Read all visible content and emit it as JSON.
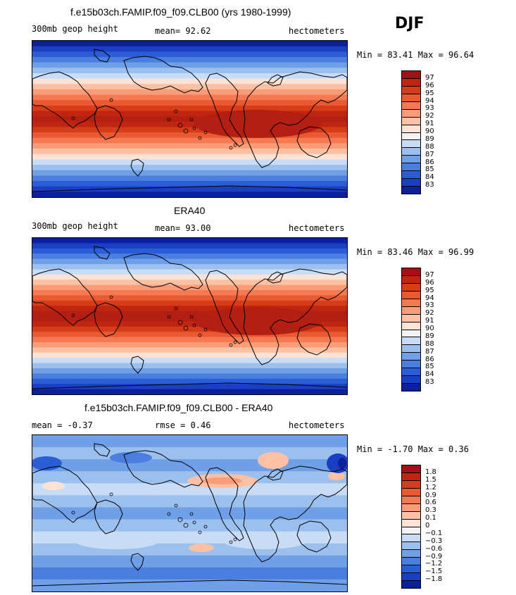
{
  "season": "DJF",
  "panels": [
    {
      "title": "f.e15b03ch.FAMIP.f09_f09.CLB00 (yrs 1980-1999)",
      "left_label": "300mb geop height",
      "center_label": "mean=  92.62",
      "units": "hectometers",
      "minmax": "Min =  83.41 Max =  96.64",
      "colorbar_labels": [
        "97",
        "96",
        "95",
        "94",
        "93",
        "92",
        "91",
        "90",
        "89",
        "88",
        "87",
        "86",
        "85",
        "84",
        "83"
      ],
      "colorbar_colors": [
        "#a50f15",
        "#c0250f",
        "#d73c18",
        "#ea5a32",
        "#f57a52",
        "#fa9c78",
        "#fcc0a3",
        "#fde3d6",
        "#f2f2f2",
        "#c8dcf6",
        "#9cc0ee",
        "#6f9fe6",
        "#4a7fe0",
        "#2b5ed6",
        "#1a3fc2",
        "#0c1f9c"
      ],
      "field_colors": [
        "#0c1f9c",
        "#1a3fc2",
        "#2b5ed6",
        "#4a7fe0",
        "#6f9fe6",
        "#9cc0ee",
        "#c8dcf6",
        "#fde3d6",
        "#fcc0a3",
        "#fa9c78",
        "#f57a52",
        "#ea5a32",
        "#d73c18",
        "#c0250f",
        "#b31f12",
        "#c0250f",
        "#d73c18",
        "#ea5a32",
        "#f57a52",
        "#fa9c78",
        "#fcc0a3",
        "#fde3d6",
        "#c8dcf6",
        "#9cc0ee",
        "#6f9fe6",
        "#4a7fe0",
        "#2b5ed6",
        "#1a3fc2",
        "#0c1f9c"
      ]
    },
    {
      "title": "ERA40",
      "left_label": "300mb geop height",
      "center_label": "mean=  93.00",
      "units": "hectometers",
      "minmax": "Min =  83.46 Max =  96.99",
      "colorbar_labels": [
        "97",
        "96",
        "95",
        "94",
        "93",
        "92",
        "91",
        "90",
        "89",
        "88",
        "87",
        "86",
        "85",
        "84",
        "83"
      ],
      "colorbar_colors": [
        "#a50f15",
        "#c0250f",
        "#d73c18",
        "#ea5a32",
        "#f57a52",
        "#fa9c78",
        "#fcc0a3",
        "#fde3d6",
        "#f2f2f2",
        "#c8dcf6",
        "#9cc0ee",
        "#6f9fe6",
        "#4a7fe0",
        "#2b5ed6",
        "#1a3fc2",
        "#0c1f9c"
      ],
      "field_colors": [
        "#0c1f9c",
        "#1a3fc2",
        "#2b5ed6",
        "#4a7fe0",
        "#6f9fe6",
        "#9cc0ee",
        "#c8dcf6",
        "#fde3d6",
        "#fcc0a3",
        "#fa9c78",
        "#f57a52",
        "#ea5a32",
        "#d73c18",
        "#c0250f",
        "#b31f12",
        "#b31f12",
        "#c0250f",
        "#d73c18",
        "#ea5a32",
        "#f57a52",
        "#fa9c78",
        "#fcc0a3",
        "#fde3d6",
        "#c8dcf6",
        "#9cc0ee",
        "#6f9fe6",
        "#4a7fe0",
        "#2b5ed6",
        "#1a3fc2",
        "#0c1f9c"
      ]
    },
    {
      "title": "f.e15b03ch.FAMIP.f09_f09.CLB00 - ERA40",
      "left_label": "mean =  -0.37",
      "center_label": "rmse =    0.46",
      "units": "hectometers",
      "minmax": "Min =  -1.70 Max =   0.36",
      "colorbar_labels": [
        "1.8",
        "1.5",
        "1.2",
        "0.9",
        "0.6",
        "0.3",
        "0.1",
        "0",
        "−0.1",
        "−0.3",
        "−0.6",
        "−0.9",
        "−1.2",
        "−1.5",
        "−1.8"
      ],
      "colorbar_colors": [
        "#a50f15",
        "#c0250f",
        "#d73c18",
        "#ea5a32",
        "#f57a52",
        "#fa9c78",
        "#fcc0a3",
        "#fde3d6",
        "#f2f2f2",
        "#c8dcf6",
        "#9cc0ee",
        "#6f9fe6",
        "#4a7fe0",
        "#2b5ed6",
        "#1a3fc2",
        "#0c1f9c"
      ],
      "field_colors": [
        "#6f9fe6",
        "#9cc0ee",
        "#6f9fe6",
        "#9cc0ee",
        "#c8dcf6",
        "#9cc0ee",
        "#6f9fe6",
        "#9cc0ee",
        "#c8dcf6",
        "#9cc0ee",
        "#6f9fe6",
        "#4a7fe0",
        "#6f9fe6"
      ]
    }
  ]
}
